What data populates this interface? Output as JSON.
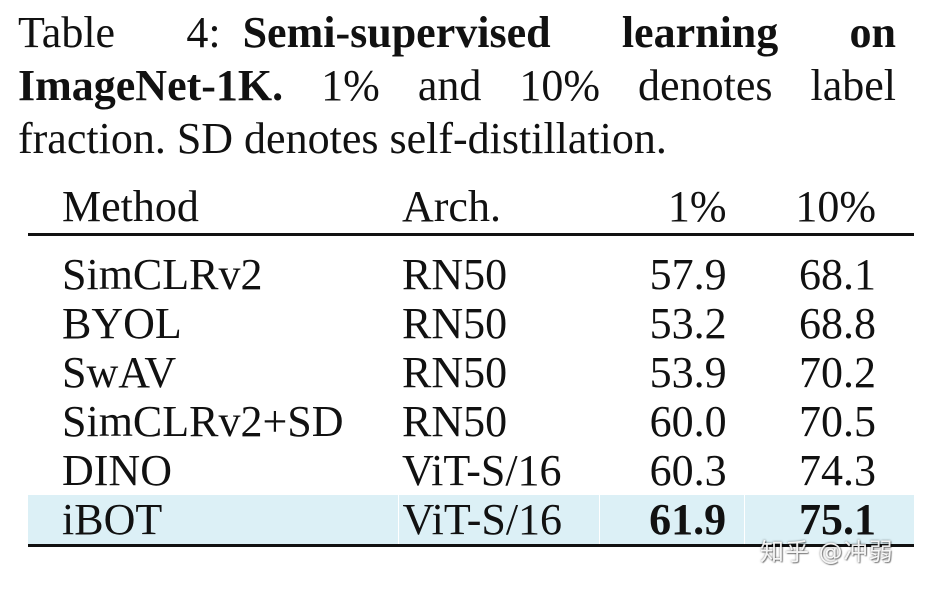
{
  "caption": {
    "label": "Table 4:",
    "title": "Semi-supervised learning on ImageNet-1K.",
    "text": " 1% and 10% denotes label fraction. SD denotes self-distillation."
  },
  "table": {
    "headers": {
      "method": "Method",
      "arch": "Arch.",
      "p1": "1%",
      "p10": "10%"
    },
    "rows": [
      {
        "method": "SimCLRv2",
        "arch": "RN50",
        "p1": "57.9",
        "p10": "68.1"
      },
      {
        "method": "BYOL",
        "arch": "RN50",
        "p1": "53.2",
        "p10": "68.8"
      },
      {
        "method": "SwAV",
        "arch": "RN50",
        "p1": "53.9",
        "p10": "70.2"
      },
      {
        "method": "SimCLRv2+SD",
        "arch": "RN50",
        "p1": "60.0",
        "p10": "70.5"
      },
      {
        "method": "DINO",
        "arch": "ViT-S/16",
        "p1": "60.3",
        "p10": "74.3"
      },
      {
        "method": "iBOT",
        "arch": "ViT-S/16",
        "p1": "61.9",
        "p10": "75.1"
      }
    ]
  },
  "watermark": "知乎 @冲弱",
  "colors": {
    "highlight_row": "#dcf0f6"
  }
}
